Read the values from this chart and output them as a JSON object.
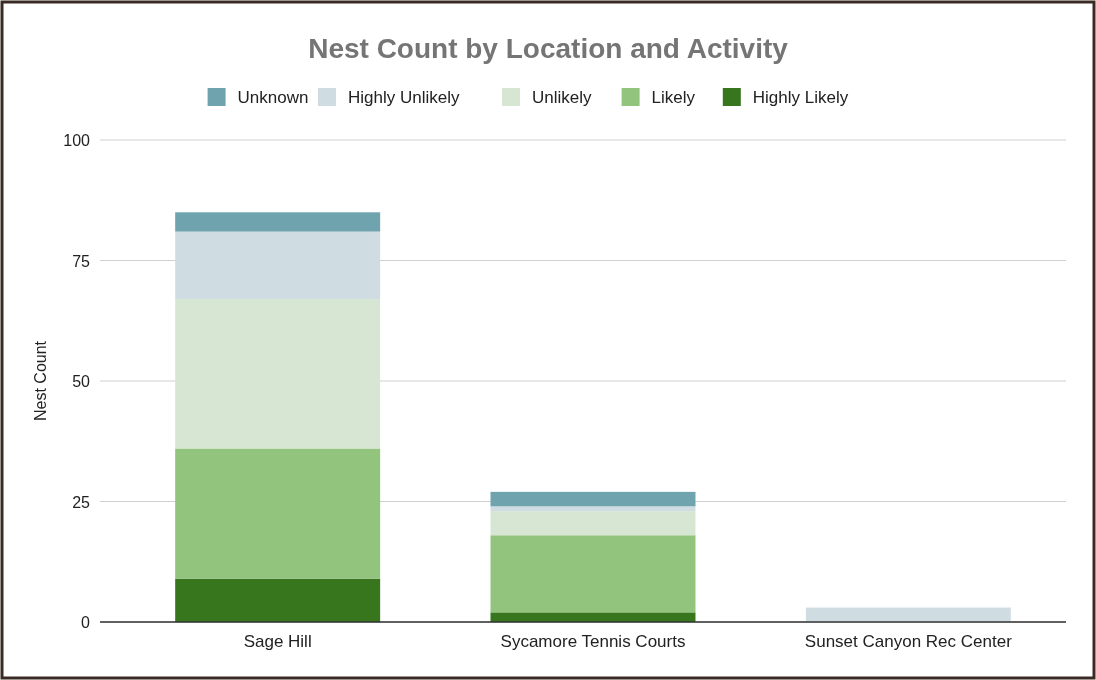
{
  "chart_data": {
    "type": "bar",
    "title": "Nest Count by Location and Activity",
    "ylabel": "Nest Count",
    "categories": [
      "Sage Hill",
      "Sycamore Tennis Courts",
      "Sunset Canyon Rec Center"
    ],
    "stacked": true,
    "series": [
      {
        "name": "Highly Likely",
        "color": "#38761d",
        "values": [
          9,
          2,
          0
        ]
      },
      {
        "name": "Likely",
        "color": "#93c47d",
        "values": [
          27,
          16,
          0
        ]
      },
      {
        "name": "Unlikely",
        "color": "#d7e6d3",
        "values": [
          31,
          5,
          0
        ]
      },
      {
        "name": "Highly Unlikely",
        "color": "#cfdde2",
        "values": [
          14,
          1,
          3
        ]
      },
      {
        "name": "Unknown",
        "color": "#6fa3ae",
        "values": [
          4,
          3,
          0
        ]
      }
    ],
    "ylim": [
      0,
      100
    ],
    "yticks": [
      0,
      25,
      50,
      75,
      100
    ],
    "grid": "y",
    "legend": "top"
  }
}
